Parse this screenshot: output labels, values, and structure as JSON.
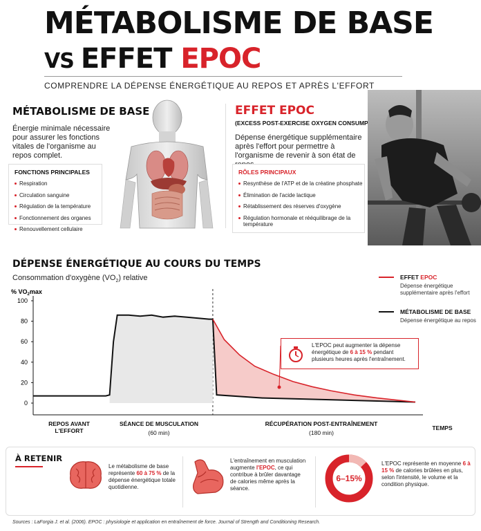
{
  "header": {
    "title_line1": "MÉTABOLISME DE BASE",
    "title_vs": "VS",
    "title_effet": "EFFET",
    "title_epoc": "EPOC",
    "subtitle": "COMPRENDRE LA DÉPENSE ÉNERGÉTIQUE AU REPOS ET APRÈS L'EFFORT"
  },
  "bmr": {
    "title": "MÉTABOLISME DE BASE",
    "description": "Énergie minimale nécessaire pour assurer les fonctions vitales de l'organisme au repos complet.",
    "box_title": "FONCTIONS PRINCIPALES",
    "items": [
      "Respiration",
      "Circulation sanguine",
      "Régulation de la température",
      "Fonctionnement des organes",
      "Renouvellement cellulaire"
    ]
  },
  "epoc": {
    "title": "EFFET EPOC",
    "subtitle": "(EXCESS POST-EXERCISE OXYGEN CONSUMPTION)",
    "description": "Dépense énergétique supplémentaire après l'effort pour permettre à l'organisme de revenir à son état de repos.",
    "box_title": "RÔLES PRINCIPAUX",
    "items": [
      "Resynthèse de l'ATP et de la créatine phosphate",
      "Élimination de l'acide lactique",
      "Rétablissement des réserves d'oxygène",
      "Régulation hormonale et rééquilibrage de la température"
    ]
  },
  "chart_section": {
    "title": "DÉPENSE ÉNERGÉTIQUE AU COURS DU TEMPS",
    "subtitle_pre": "Consommation d'oxygène (VO",
    "subtitle_sub": "2",
    "subtitle_post": ") relative",
    "legend": {
      "epoc_name_pre": "EFFET ",
      "epoc_name_red": "EPOC",
      "epoc_desc": "Dépense énergétique supplémentaire après l'effort",
      "bmr_name": "MÉTABOLISME DE BASE",
      "bmr_desc": "Dépense énergétique au repos"
    },
    "callout": {
      "pre": "L'EPOC peut augmenter la dépense énergétique de ",
      "highlight": "6 à 15 %",
      "post": " pendant plusieurs heures après l'entraînement."
    },
    "x_categories": [
      {
        "label": "REPOS AVANT L'EFFORT",
        "sub": ""
      },
      {
        "label": "SÉANCE DE MUSCULATION",
        "sub": "(60 min)"
      },
      {
        "label": "RÉCUPÉRATION POST-ENTRAÎNEMENT",
        "sub": "(180 min)"
      },
      {
        "label": "TEMPS",
        "sub": ""
      }
    ]
  },
  "chart_data": {
    "type": "line",
    "ylabel_pre": "% VO",
    "ylabel_sub": "2",
    "ylabel_post": "max",
    "ylim": [
      0,
      100
    ],
    "yticks": [
      0,
      20,
      40,
      60,
      80,
      100
    ],
    "grid": false,
    "legend_position": "top-right",
    "phase_domain": [
      0,
      1
    ],
    "series": [
      {
        "name": "EFFET EPOC",
        "color": "#d8232a",
        "x": [
          0.47,
          0.5,
          0.54,
          0.58,
          0.63,
          0.68,
          0.73,
          0.78,
          0.84,
          0.9,
          0.95,
          1.0
        ],
        "values": [
          82,
          62,
          47,
          36,
          28,
          21,
          16,
          12,
          8,
          5,
          3,
          1
        ]
      },
      {
        "name": "MÉTABOLISME DE BASE",
        "color": "#111111",
        "x": [
          0.0,
          0.19,
          0.2,
          0.21,
          0.22,
          0.25,
          0.28,
          0.31,
          0.34,
          0.37,
          0.4,
          0.43,
          0.46,
          0.47,
          0.48,
          0.6,
          0.8,
          1.0
        ],
        "values": [
          7,
          7,
          8,
          60,
          86,
          86,
          85,
          86,
          84,
          85,
          84,
          83,
          82,
          82,
          8,
          5,
          3,
          1
        ]
      }
    ]
  },
  "retain": {
    "title": "À RETENIR",
    "item1": {
      "pre": "Le métabolisme de base représente ",
      "highlight": "60 à 75 %",
      "post": " de la dépense énergétique totale quotidienne."
    },
    "item2": {
      "pre": "L'entraînement en musculation augmente ",
      "highlight": "l'EPOC",
      "post": ", ce qui contribue à brûler davantage de calories même après la séance."
    },
    "item3": {
      "pre": "L'EPOC représente en moyenne ",
      "highlight": "6 à 15 %",
      "post": " de calories brûlées en plus, selon l'intensité, le volume et la condition physique."
    },
    "donut_label": "6–15%"
  },
  "sources": "Sources : LaForgia J. et al. (2006). EPOC : physiologie et application en entraînement de force. Journal of Strength and Conditioning Research.",
  "colors": {
    "accent": "#d8232a",
    "text": "#111111"
  }
}
